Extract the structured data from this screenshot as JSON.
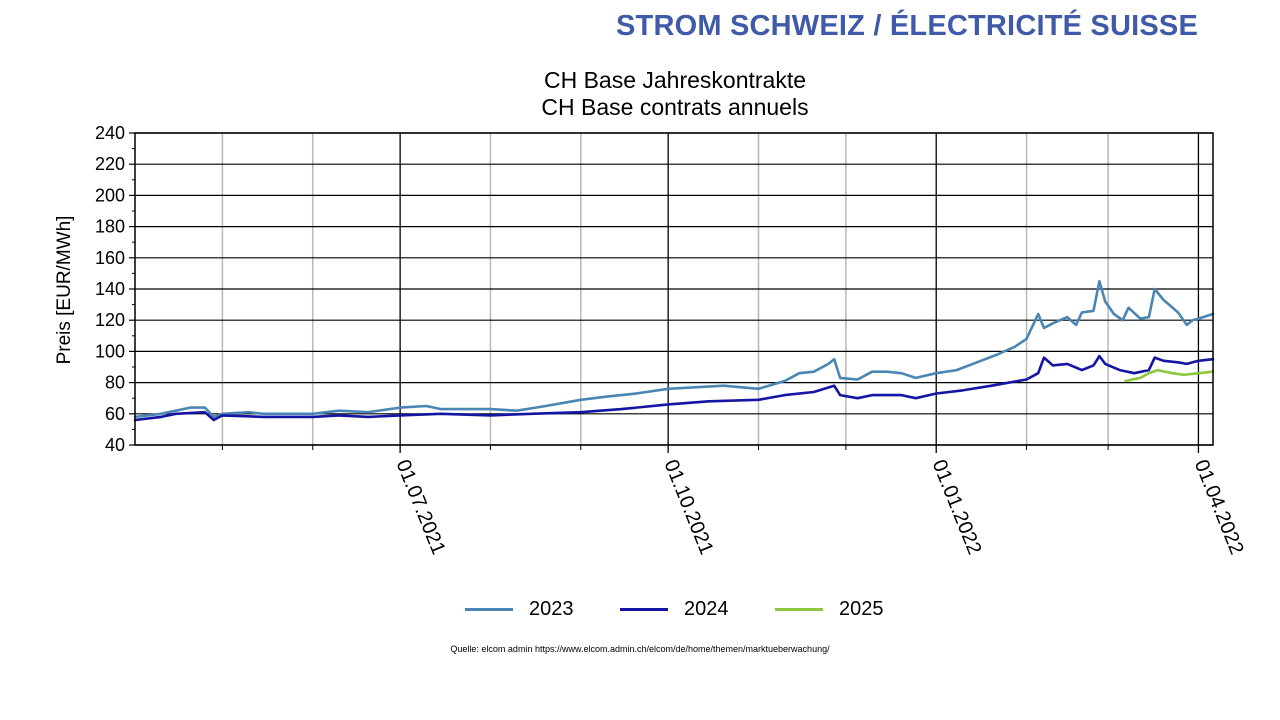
{
  "header": {
    "title": "STROM SCHWEIZ / ÉLECTRICITÉ SUISSE"
  },
  "chart_data": {
    "type": "line",
    "title_lines": [
      "CH Base Jahreskontrakte",
      "CH Base contrats annuels"
    ],
    "ylabel": "Preis [EUR/MWh]",
    "ylim": [
      40,
      240
    ],
    "yticks": [
      40,
      60,
      80,
      100,
      120,
      140,
      160,
      180,
      200,
      220,
      240
    ],
    "xlim": [
      "2021-04-01",
      "2022-04-06"
    ],
    "x_major_labels": [
      "01.07.2021",
      "01.10.2021",
      "01.01.2022",
      "01.04.2022"
    ],
    "x_major_dates": [
      "2021-07-01",
      "2021-10-01",
      "2022-01-01",
      "2022-04-01"
    ],
    "x_minor_dates": [
      "2021-05-01",
      "2021-06-01",
      "2021-08-01",
      "2021-09-01",
      "2021-11-01",
      "2021-12-01",
      "2022-02-01",
      "2022-03-01"
    ],
    "grid": true,
    "legend_position": "bottom",
    "series": [
      {
        "name": "2023",
        "color": "#4a86b4",
        "points": [
          [
            "2021-04-01",
            58
          ],
          [
            "2021-04-10",
            60
          ],
          [
            "2021-04-15",
            62
          ],
          [
            "2021-04-20",
            64
          ],
          [
            "2021-04-25",
            64
          ],
          [
            "2021-04-28",
            58
          ],
          [
            "2021-05-01",
            60
          ],
          [
            "2021-05-10",
            61
          ],
          [
            "2021-05-15",
            60
          ],
          [
            "2021-06-01",
            60
          ],
          [
            "2021-06-10",
            62
          ],
          [
            "2021-06-20",
            61
          ],
          [
            "2021-07-01",
            64
          ],
          [
            "2021-07-10",
            65
          ],
          [
            "2021-07-15",
            63
          ],
          [
            "2021-08-01",
            63
          ],
          [
            "2021-08-10",
            62
          ],
          [
            "2021-08-20",
            65
          ],
          [
            "2021-09-01",
            69
          ],
          [
            "2021-09-10",
            71
          ],
          [
            "2021-09-20",
            73
          ],
          [
            "2021-10-01",
            76
          ],
          [
            "2021-10-20",
            78
          ],
          [
            "2021-11-01",
            76
          ],
          [
            "2021-11-10",
            81
          ],
          [
            "2021-11-15",
            86
          ],
          [
            "2021-11-20",
            87
          ],
          [
            "2021-11-25",
            92
          ],
          [
            "2021-11-27",
            95
          ],
          [
            "2021-11-29",
            83
          ],
          [
            "2021-12-05",
            82
          ],
          [
            "2021-12-10",
            87
          ],
          [
            "2021-12-15",
            87
          ],
          [
            "2021-12-20",
            86
          ],
          [
            "2021-12-25",
            83
          ],
          [
            "2022-01-01",
            86
          ],
          [
            "2022-01-08",
            88
          ],
          [
            "2022-01-15",
            93
          ],
          [
            "2022-01-22",
            98
          ],
          [
            "2022-01-28",
            103
          ],
          [
            "2022-02-01",
            108
          ],
          [
            "2022-02-05",
            124
          ],
          [
            "2022-02-07",
            115
          ],
          [
            "2022-02-10",
            118
          ],
          [
            "2022-02-15",
            122
          ],
          [
            "2022-02-18",
            117
          ],
          [
            "2022-02-20",
            125
          ],
          [
            "2022-02-24",
            126
          ],
          [
            "2022-02-26",
            145
          ],
          [
            "2022-02-28",
            132
          ],
          [
            "2022-03-03",
            124
          ],
          [
            "2022-03-06",
            120
          ],
          [
            "2022-03-08",
            128
          ],
          [
            "2022-03-12",
            121
          ],
          [
            "2022-03-15",
            122
          ],
          [
            "2022-03-17",
            140
          ],
          [
            "2022-03-20",
            133
          ],
          [
            "2022-03-25",
            125
          ],
          [
            "2022-03-28",
            117
          ],
          [
            "2022-03-30",
            120
          ],
          [
            "2022-04-01",
            121
          ],
          [
            "2022-04-06",
            124
          ]
        ]
      },
      {
        "name": "2024",
        "color": "#1515a3",
        "points": [
          [
            "2021-04-01",
            56
          ],
          [
            "2021-04-10",
            58
          ],
          [
            "2021-04-15",
            60
          ],
          [
            "2021-04-25",
            61
          ],
          [
            "2021-04-28",
            56
          ],
          [
            "2021-05-01",
            59
          ],
          [
            "2021-05-15",
            58
          ],
          [
            "2021-06-01",
            58
          ],
          [
            "2021-06-10",
            59
          ],
          [
            "2021-06-20",
            58
          ],
          [
            "2021-07-01",
            59
          ],
          [
            "2021-07-15",
            60
          ],
          [
            "2021-08-01",
            59
          ],
          [
            "2021-08-15",
            60
          ],
          [
            "2021-09-01",
            61
          ],
          [
            "2021-09-15",
            63
          ],
          [
            "2021-10-01",
            66
          ],
          [
            "2021-10-15",
            68
          ],
          [
            "2021-11-01",
            69
          ],
          [
            "2021-11-10",
            72
          ],
          [
            "2021-11-20",
            74
          ],
          [
            "2021-11-27",
            78
          ],
          [
            "2021-11-29",
            72
          ],
          [
            "2021-12-05",
            70
          ],
          [
            "2021-12-10",
            72
          ],
          [
            "2021-12-20",
            72
          ],
          [
            "2021-12-25",
            70
          ],
          [
            "2022-01-01",
            73
          ],
          [
            "2022-01-10",
            75
          ],
          [
            "2022-01-20",
            78
          ],
          [
            "2022-02-01",
            82
          ],
          [
            "2022-02-05",
            86
          ],
          [
            "2022-02-07",
            96
          ],
          [
            "2022-02-10",
            91
          ],
          [
            "2022-02-15",
            92
          ],
          [
            "2022-02-20",
            88
          ],
          [
            "2022-02-24",
            91
          ],
          [
            "2022-02-26",
            97
          ],
          [
            "2022-02-28",
            92
          ],
          [
            "2022-03-05",
            88
          ],
          [
            "2022-03-10",
            86
          ],
          [
            "2022-03-15",
            88
          ],
          [
            "2022-03-17",
            96
          ],
          [
            "2022-03-20",
            94
          ],
          [
            "2022-03-25",
            93
          ],
          [
            "2022-03-28",
            92
          ],
          [
            "2022-04-01",
            94
          ],
          [
            "2022-04-06",
            95
          ]
        ]
      },
      {
        "name": "2025",
        "color": "#8dc63f",
        "points": [
          [
            "2022-03-07",
            81
          ],
          [
            "2022-03-12",
            83
          ],
          [
            "2022-03-15",
            86
          ],
          [
            "2022-03-18",
            88
          ],
          [
            "2022-03-23",
            86
          ],
          [
            "2022-03-27",
            85
          ],
          [
            "2022-04-01",
            86
          ],
          [
            "2022-04-06",
            87
          ]
        ]
      }
    ],
    "series_note": "Extends through Apr 2022"
  },
  "legend": [
    {
      "label": "2023",
      "color": "#4a86b4"
    },
    {
      "label": "2024",
      "color": "#1515a3"
    },
    {
      "label": "2025",
      "color": "#8dc63f"
    }
  ],
  "source": "Quelle: elcom admin https://www.elcom.admin.ch/elcom/de/home/themen/marktueberwachung/"
}
